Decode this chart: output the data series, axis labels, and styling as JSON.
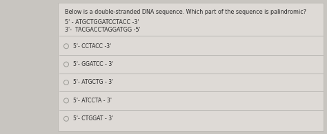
{
  "background_color": "#c8c5c0",
  "box_facecolor": "#dedad6",
  "box_edge_color": "#b8b5b0",
  "title": "Below is a double-stranded DNA sequence. Which part of the sequence is palindromic?",
  "seq_line1": "5' - ATGCTGGATCCTACC -3'",
  "seq_line2": "3'-  TACGACCTAGGATGG -5'",
  "options": [
    "5'- CCTACC -3'",
    "5'- GGATCC - 3'",
    "5'- ATGCTG - 3'",
    "5'- ATCCTA - 3'",
    "5'- CTGGAT - 3'"
  ],
  "title_fontsize": 5.8,
  "seq_fontsize": 5.8,
  "option_fontsize": 5.6,
  "text_color": "#2a2a2a",
  "line_color": "#aaa8a4",
  "circle_color": "#999994"
}
